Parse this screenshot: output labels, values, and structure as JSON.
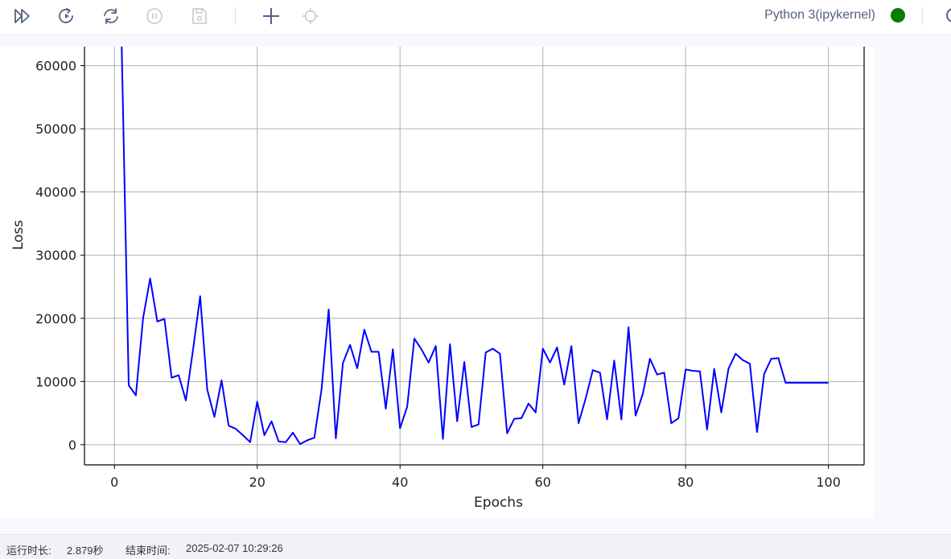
{
  "toolbar": {
    "buttons": [
      {
        "name": "run-all-icon",
        "icon": "double-play"
      },
      {
        "name": "restart-run-icon",
        "icon": "restart-play"
      },
      {
        "name": "refresh-icon",
        "icon": "refresh"
      },
      {
        "name": "interrupt-icon",
        "icon": "pause-circle"
      },
      {
        "name": "save-icon",
        "icon": "save"
      },
      {
        "name": "add-cell-icon",
        "icon": "plus"
      },
      {
        "name": "locate-icon",
        "icon": "crosshair"
      }
    ],
    "kernel_name": "Python 3(ipykernel)",
    "kernel_status_color": "#0a7d00"
  },
  "chart_data": {
    "type": "line",
    "xlabel": "Epochs",
    "ylabel": "Loss",
    "xlim": [
      -4.2,
      105
    ],
    "ylim": [
      -3200,
      63000
    ],
    "xticks": [
      0,
      20,
      40,
      60,
      80,
      100
    ],
    "yticks": [
      0,
      10000,
      20000,
      30000,
      40000,
      50000,
      60000
    ],
    "grid": true,
    "line_color": "#0000ff",
    "series": [
      {
        "x": [
          1,
          2,
          3,
          4,
          5,
          6,
          7,
          8,
          9,
          10,
          11,
          12,
          13,
          14,
          15,
          16,
          17,
          18,
          19,
          20,
          21,
          22,
          23,
          24,
          25,
          26,
          27,
          28,
          29,
          30,
          31,
          32,
          33,
          34,
          35,
          36,
          37,
          38,
          39,
          40,
          41,
          42,
          43,
          44,
          45,
          46,
          47,
          48,
          49,
          50,
          51,
          52,
          53,
          54,
          55,
          56,
          57,
          58,
          59,
          60,
          61,
          62,
          63,
          64,
          65,
          66,
          67,
          68,
          69,
          70,
          71,
          72,
          73,
          74,
          75,
          76,
          77,
          78,
          79,
          80,
          81,
          82,
          83,
          84,
          85,
          86,
          87,
          88,
          89,
          90,
          91,
          92,
          93,
          94,
          95,
          96,
          97,
          98,
          99,
          100
        ],
        "values": [
          64000,
          9400,
          7800,
          20000,
          26300,
          19500,
          19900,
          10600,
          11000,
          7000,
          15000,
          23500,
          8700,
          4400,
          10200,
          3000,
          2500,
          1500,
          400,
          6800,
          1500,
          3700,
          500,
          400,
          1900,
          100,
          700,
          1100,
          8700,
          21400,
          1000,
          12900,
          15800,
          12100,
          18200,
          14700,
          14700,
          5700,
          15100,
          2600,
          6000,
          16800,
          15100,
          13000,
          15600,
          900,
          15900,
          3700,
          13100,
          2800,
          3200,
          14600,
          15200,
          14400,
          1800,
          4100,
          4200,
          6500,
          5100,
          15200,
          13000,
          15400,
          9500,
          15600,
          3400,
          7300,
          11800,
          11400,
          4000,
          13300,
          4000,
          18600,
          4600,
          8000,
          13600,
          11100,
          11400,
          3400,
          4200,
          11900,
          11700,
          11600,
          2400,
          12000,
          5100,
          12000,
          14400,
          13400,
          12800,
          2000,
          11200,
          13600,
          13700,
          9800,
          9800,
          9800,
          9800,
          9800,
          9800,
          9800
        ]
      }
    ]
  },
  "status": {
    "runtime_label": "运行时长:",
    "runtime_value": "2.879秒",
    "end_label": "结束时间:",
    "end_value": "2025-02-07 10:29:26"
  }
}
